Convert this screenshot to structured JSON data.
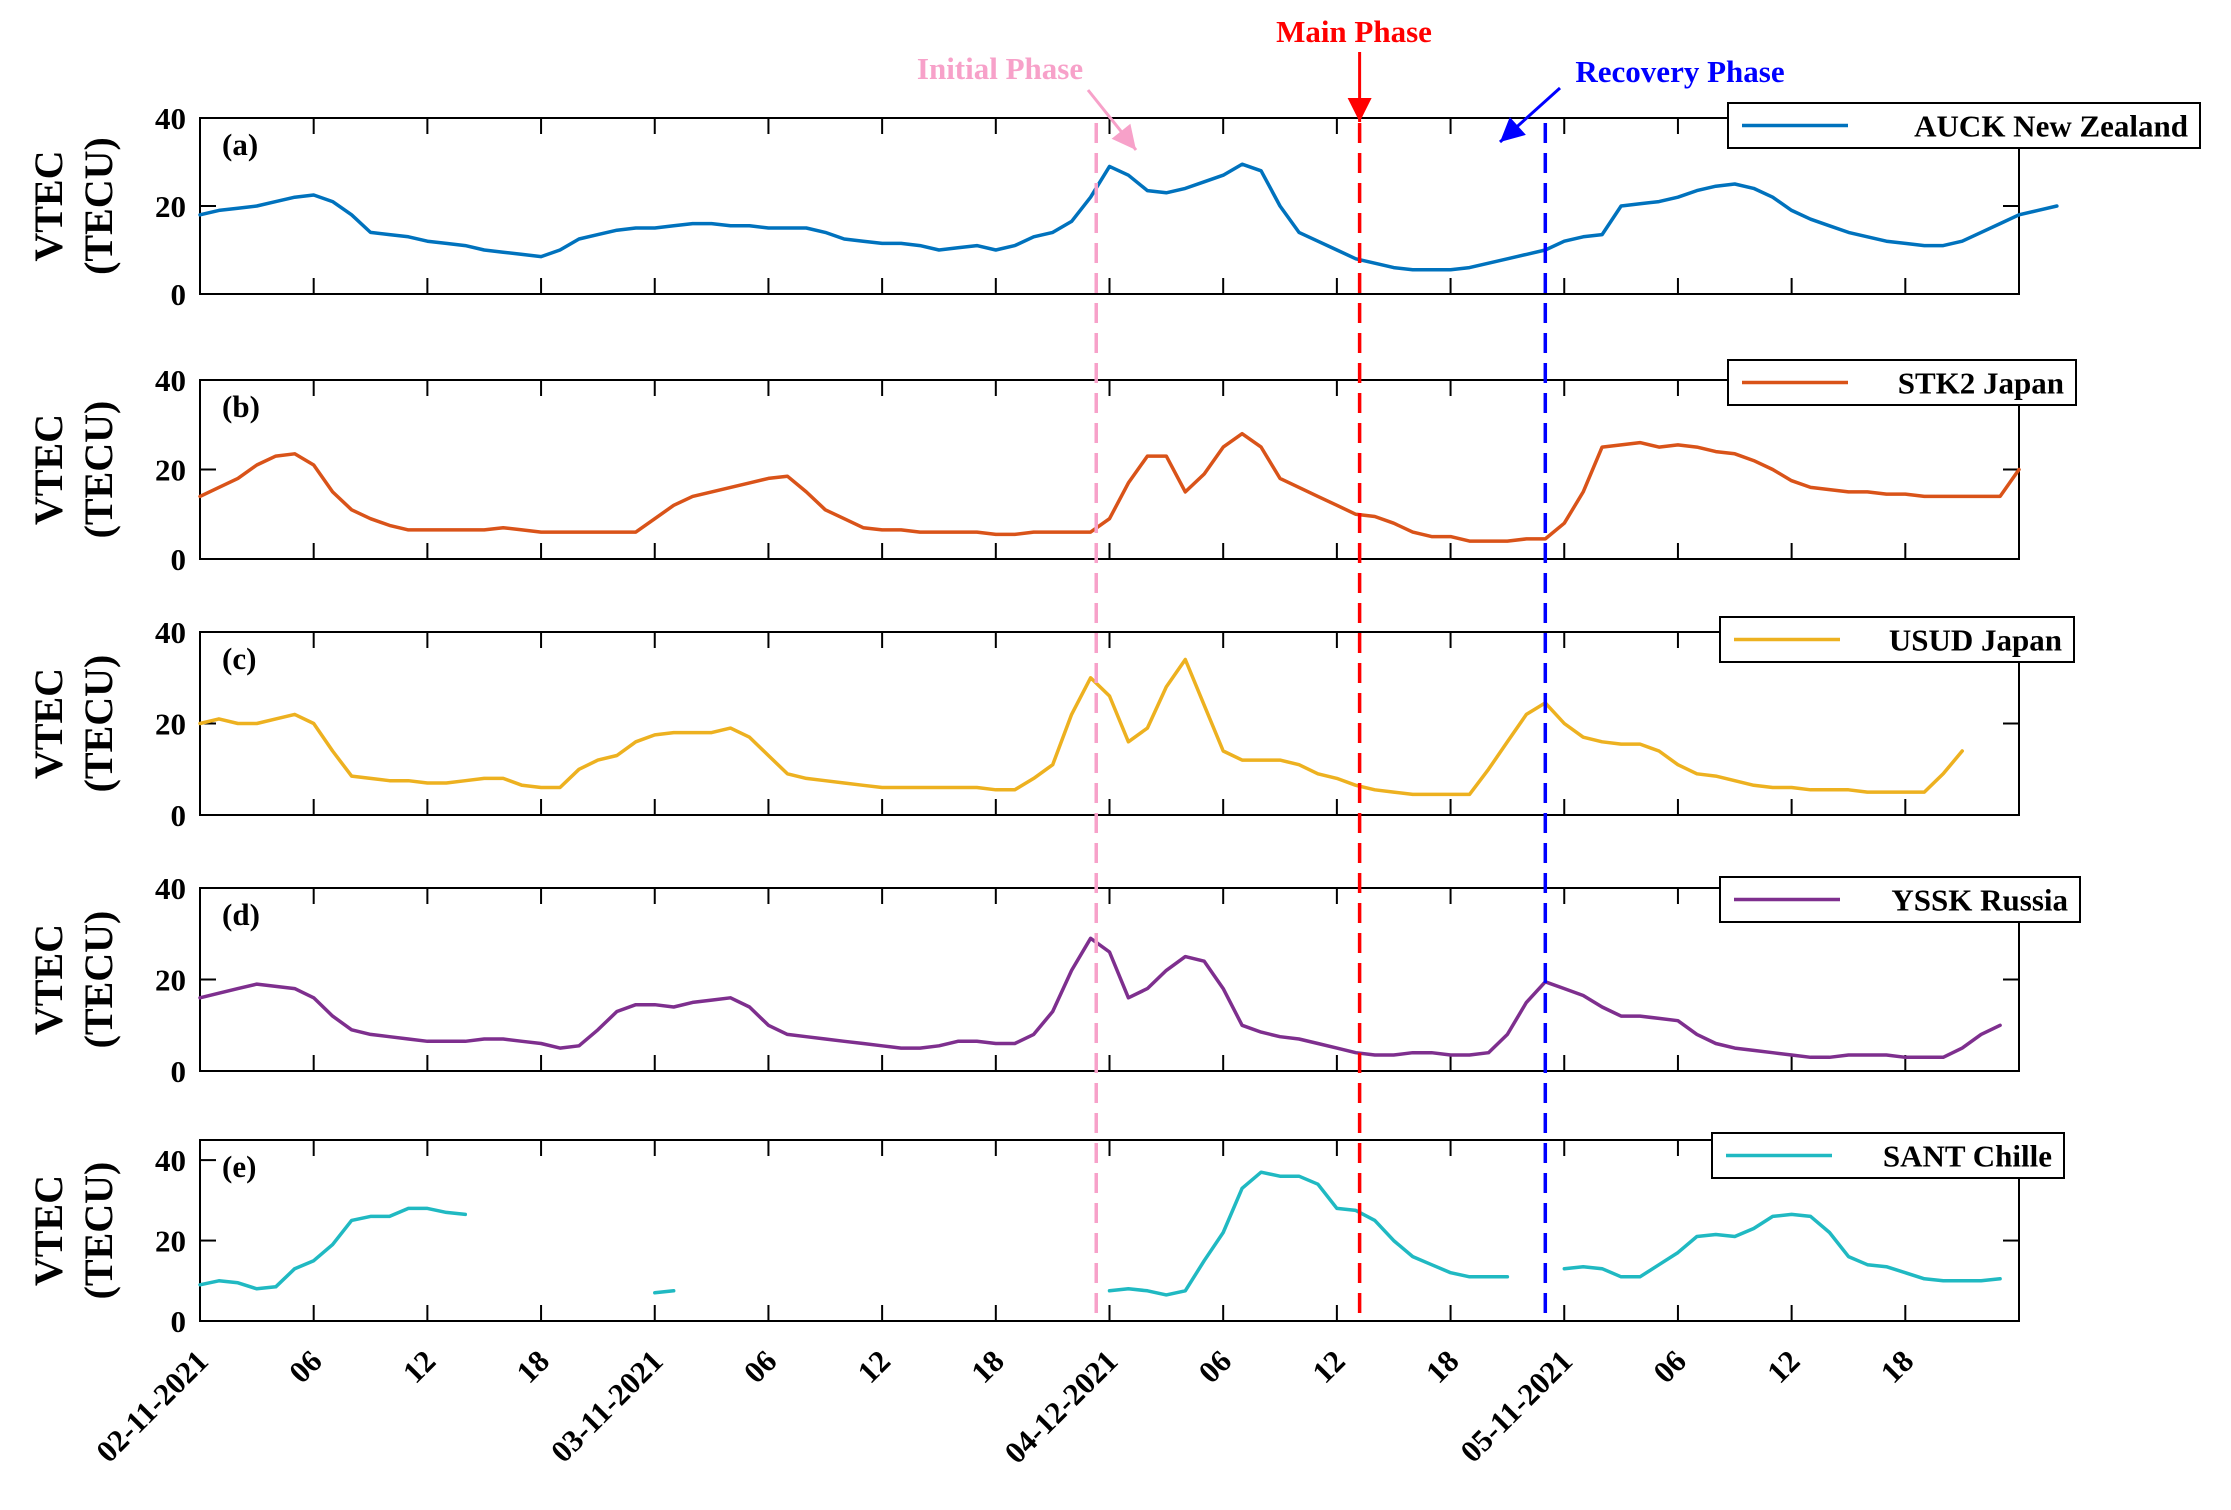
{
  "chart_data": {
    "type": "line",
    "colors": {
      "auck": "#0072BD",
      "stk2": "#D95319",
      "usud": "#EDB120",
      "yssk": "#7E2F8E",
      "sant": "#20B9C2",
      "initial": "#F7A1C9",
      "main": "#FF0000",
      "recovery": "#0000FF"
    },
    "x_range": [
      0,
      96
    ],
    "x_ticks": [
      {
        "pos": 0,
        "label": "02-11-2021"
      },
      {
        "pos": 6,
        "label": "06"
      },
      {
        "pos": 12,
        "label": "12"
      },
      {
        "pos": 18,
        "label": "18"
      },
      {
        "pos": 24,
        "label": "03-11-2021"
      },
      {
        "pos": 30,
        "label": "06"
      },
      {
        "pos": 36,
        "label": "12"
      },
      {
        "pos": 42,
        "label": "18"
      },
      {
        "pos": 48,
        "label": "04-12-2021"
      },
      {
        "pos": 54,
        "label": "06"
      },
      {
        "pos": 60,
        "label": "12"
      },
      {
        "pos": 66,
        "label": "18"
      },
      {
        "pos": 72,
        "label": "05-11-2021"
      },
      {
        "pos": 78,
        "label": "06"
      },
      {
        "pos": 84,
        "label": "12"
      },
      {
        "pos": 90,
        "label": "18"
      }
    ],
    "phases": [
      {
        "name": "Initial Phase",
        "x": 47.3,
        "color_key": "initial"
      },
      {
        "name": "Main Phase",
        "x": 61.2,
        "color_key": "main"
      },
      {
        "name": "Recovery Phase",
        "x": 71.0,
        "color_key": "recovery"
      }
    ],
    "panels": [
      {
        "label": "(a)",
        "ylabel": [
          "VTEC",
          "(TECU)"
        ],
        "ylim": [
          0,
          40
        ],
        "y_ticks": [
          "0",
          "20",
          "40"
        ],
        "legend": "AUCK New Zealand",
        "color_key": "auck",
        "values": [
          18,
          19,
          19.5,
          20,
          21,
          22,
          22.5,
          21,
          18,
          14,
          13.5,
          13,
          12,
          11.5,
          11,
          10,
          9.5,
          9,
          8.5,
          10,
          12.5,
          13.5,
          14.5,
          15,
          15,
          15.5,
          16,
          16,
          15.5,
          15.5,
          15,
          15,
          15,
          14,
          12.5,
          12,
          11.5,
          11.5,
          11,
          10,
          10.5,
          11,
          10,
          11,
          13,
          14,
          16.5,
          22,
          29,
          27,
          23.5,
          23,
          24,
          25.5,
          27,
          29.5,
          28,
          20,
          14,
          12,
          10,
          8,
          7,
          6,
          5.5,
          5.5,
          5.5,
          6,
          7,
          8,
          9,
          10,
          12,
          13,
          13.5,
          20,
          20.5,
          21,
          22,
          23.5,
          24.5,
          25,
          24,
          22,
          19,
          17,
          15.5,
          14,
          13,
          12,
          11.5,
          11,
          11,
          12,
          14,
          16,
          18,
          19,
          20
        ]
      },
      {
        "label": "(b)",
        "ylabel": [
          "VTEC",
          "(TECU)"
        ],
        "ylim": [
          0,
          40
        ],
        "y_ticks": [
          "0",
          "20",
          "40"
        ],
        "legend": "STK2 Japan",
        "color_key": "stk2",
        "values": [
          14,
          16,
          18,
          21,
          23,
          23.5,
          21,
          15,
          11,
          9,
          7.5,
          6.5,
          6.5,
          6.5,
          6.5,
          6.5,
          7,
          6.5,
          6,
          6,
          6,
          6,
          6,
          6,
          9,
          12,
          14,
          15,
          16,
          17,
          18,
          18.5,
          15,
          11,
          9,
          7,
          6.5,
          6.5,
          6,
          6,
          6,
          6,
          5.5,
          5.5,
          6,
          6,
          6,
          6,
          9,
          17,
          23,
          23,
          15,
          19,
          25,
          28,
          25,
          18,
          16,
          14,
          12,
          10,
          9.5,
          8,
          6,
          5,
          5,
          4,
          4,
          4,
          4.5,
          4.5,
          8,
          15,
          25,
          25.5,
          26,
          25,
          25.5,
          25,
          24,
          23.5,
          22,
          20,
          17.5,
          16,
          15.5,
          15,
          15,
          14.5,
          14.5,
          14,
          14,
          14,
          14,
          14,
          20
        ]
      },
      {
        "label": "(c)",
        "ylabel": [
          "VTEC",
          "(TECU)"
        ],
        "ylim": [
          0,
          40
        ],
        "y_ticks": [
          "0",
          "20",
          "40"
        ],
        "legend": "USUD Japan",
        "color_key": "usud",
        "values": [
          20,
          21,
          20,
          20,
          21,
          22,
          20,
          14,
          8.5,
          8,
          7.5,
          7.5,
          7,
          7,
          7.5,
          8,
          8,
          6.5,
          6,
          6,
          10,
          12,
          13,
          16,
          17.5,
          18,
          18,
          18,
          19,
          17,
          13,
          9,
          8,
          7.5,
          7,
          6.5,
          6,
          6,
          6,
          6,
          6,
          6,
          5.5,
          5.5,
          8,
          11,
          22,
          30,
          26,
          16,
          19,
          28,
          34,
          24,
          14,
          12,
          12,
          12,
          11,
          9,
          8,
          6.5,
          5.5,
          5,
          4.5,
          4.5,
          4.5,
          4.5,
          10,
          16,
          22,
          24.5,
          20,
          17,
          16,
          15.5,
          15.5,
          14,
          11,
          9,
          8.5,
          7.5,
          6.5,
          6,
          6,
          5.5,
          5.5,
          5.5,
          5,
          5,
          5,
          5,
          9,
          14
        ]
      },
      {
        "label": "(d)",
        "ylabel": [
          "VTEC",
          "(TECU)"
        ],
        "ylim": [
          0,
          40
        ],
        "y_ticks": [
          "0",
          "20",
          "40"
        ],
        "legend": "YSSK Russia",
        "color_key": "yssk",
        "values": [
          16,
          17,
          18,
          19,
          18.5,
          18,
          16,
          12,
          9,
          8,
          7.5,
          7,
          6.5,
          6.5,
          6.5,
          7,
          7,
          6.5,
          6,
          5,
          5.5,
          9,
          13,
          14.5,
          14.5,
          14,
          15,
          15.5,
          16,
          14,
          10,
          8,
          7.5,
          7,
          6.5,
          6,
          5.5,
          5,
          5,
          5.5,
          6.5,
          6.5,
          6,
          6,
          8,
          13,
          22,
          29,
          26,
          16,
          18,
          22,
          25,
          24,
          18,
          10,
          8.5,
          7.5,
          7,
          6,
          5,
          4,
          3.5,
          3.5,
          4,
          4,
          3.5,
          3.5,
          4,
          8,
          15,
          19.5,
          18,
          16.5,
          14,
          12,
          12,
          11.5,
          11,
          8,
          6,
          5,
          4.5,
          4,
          3.5,
          3,
          3,
          3.5,
          3.5,
          3.5,
          3,
          3,
          3,
          5,
          8,
          10
        ]
      },
      {
        "label": "(e)",
        "ylabel": [
          "VTEC",
          "(TECU)"
        ],
        "ylim": [
          0,
          45
        ],
        "y_ticks": [
          "0",
          "20",
          "40"
        ],
        "legend": "SANT Chille",
        "color_key": "sant",
        "values": [
          9,
          10,
          9.5,
          8,
          8.5,
          13,
          15,
          19,
          25,
          26,
          26,
          28,
          28,
          27,
          26.5,
          null,
          null,
          null,
          null,
          null,
          null,
          null,
          null,
          null,
          7,
          7.5,
          null,
          null,
          null,
          null,
          null,
          null,
          null,
          null,
          null,
          null,
          null,
          null,
          null,
          null,
          null,
          null,
          null,
          null,
          null,
          null,
          null,
          null,
          7.5,
          8,
          7.5,
          6.5,
          7.5,
          15,
          22,
          33,
          37,
          36,
          36,
          34,
          28,
          27.5,
          25,
          20,
          16,
          14,
          12,
          11,
          11,
          11,
          null,
          null,
          13,
          13.5,
          13,
          11,
          11,
          14,
          17,
          21,
          21.5,
          21,
          23,
          26,
          26.5,
          26,
          22,
          16,
          14,
          13.5,
          12,
          10.5,
          10,
          10,
          10,
          10.5
        ]
      }
    ]
  }
}
